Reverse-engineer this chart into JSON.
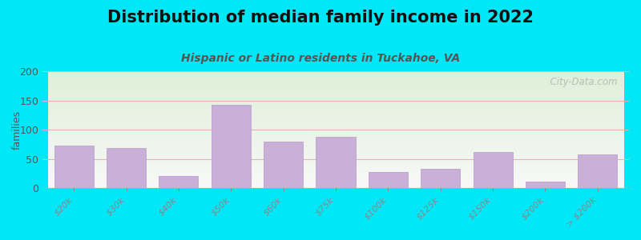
{
  "title": "Distribution of median family income in 2022",
  "subtitle": "Hispanic or Latino residents in Tuckahoe, VA",
  "categories": [
    "$20k",
    "$30k",
    "$40k",
    "$50k",
    "$60k",
    "$75k",
    "$100k",
    "$125k",
    "$150k",
    "$200k",
    "> $200k"
  ],
  "values": [
    73,
    68,
    20,
    143,
    80,
    88,
    27,
    33,
    62,
    11,
    57
  ],
  "bar_color": "#c8b0d8",
  "bar_edgecolor": "#b898c8",
  "background_outer": "#00e8f8",
  "background_inner_topleft": "#dff0d8",
  "background_inner_bottomright": "#f8f8f8",
  "grid_color": "#e8b0b0",
  "title_fontsize": 15,
  "subtitle_fontsize": 10,
  "subtitle_color": "#555555",
  "ylabel": "families",
  "ylim": [
    0,
    200
  ],
  "yticks": [
    0,
    50,
    100,
    150,
    200
  ],
  "watermark": "  City-Data.com"
}
